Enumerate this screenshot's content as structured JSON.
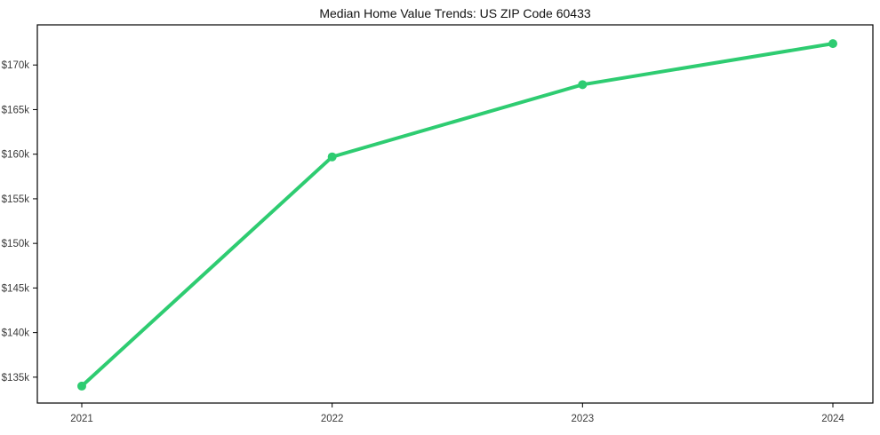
{
  "page": {
    "background_color": "#ffffff"
  },
  "chart_data": {
    "type": "line",
    "title": "Median Home Value Trends: US ZIP Code 60433",
    "x": [
      "2021",
      "2022",
      "2023",
      "2024"
    ],
    "series": [
      {
        "name": "Median Home Value",
        "color": "#2ecc71",
        "values": [
          134000,
          159700,
          167800,
          172400
        ]
      }
    ],
    "xlabel": "",
    "ylabel": "",
    "ylim": [
      132100,
      174500
    ],
    "y_ticks": [
      {
        "value": 135000,
        "label": "$135k"
      },
      {
        "value": 140000,
        "label": "$140k"
      },
      {
        "value": 145000,
        "label": "$145k"
      },
      {
        "value": 150000,
        "label": "$150k"
      },
      {
        "value": 155000,
        "label": "$155k"
      },
      {
        "value": 160000,
        "label": "$160k"
      },
      {
        "value": 165000,
        "label": "$165k"
      },
      {
        "value": 170000,
        "label": "$170k"
      }
    ],
    "grid": false,
    "legend": false,
    "marker": "circle",
    "line_width": 4,
    "marker_radius": 5,
    "axis_color": "#000000",
    "tick_label_color": "#3a3a3a",
    "title_color": "#111111"
  }
}
